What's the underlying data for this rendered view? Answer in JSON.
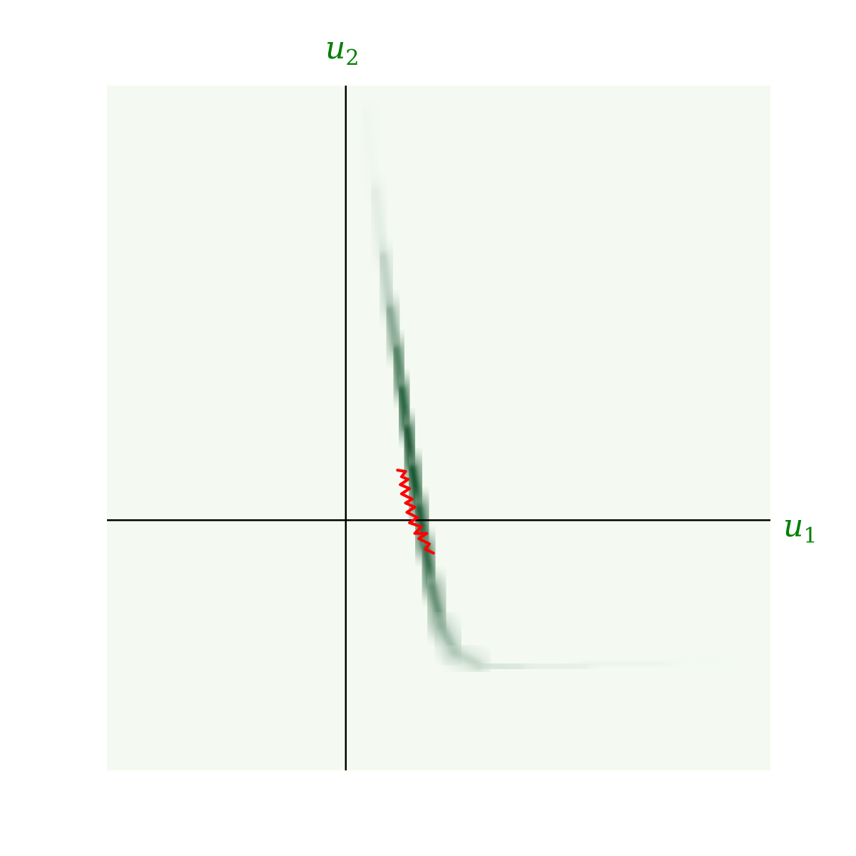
{
  "chart_data": {
    "type": "heatmap",
    "title": "",
    "xlabel": {
      "base": "u",
      "sub": "1"
    },
    "ylabel": {
      "base": "u",
      "sub": "2"
    },
    "xlim": [
      -1.8,
      3.2
    ],
    "ylim": [
      -1.9,
      3.3
    ],
    "grid": false,
    "legend": "none",
    "colormap": "Greens",
    "colors": {
      "background": "#f4faf1",
      "density_low": "#f7fcf5",
      "density_high": "#00441b",
      "trajectory": "#ff0000",
      "axes": "#000000",
      "label": "#008000"
    },
    "density_ridge": [
      {
        "x": 0.15,
        "y": 3.1,
        "intensity": 0.03
      },
      {
        "x": 0.22,
        "y": 2.5,
        "intensity": 0.1
      },
      {
        "x": 0.28,
        "y": 2.0,
        "intensity": 0.22
      },
      {
        "x": 0.33,
        "y": 1.6,
        "intensity": 0.45
      },
      {
        "x": 0.38,
        "y": 1.3,
        "intensity": 0.65
      },
      {
        "x": 0.42,
        "y": 1.0,
        "intensity": 0.82
      },
      {
        "x": 0.46,
        "y": 0.7,
        "intensity": 0.93
      },
      {
        "x": 0.5,
        "y": 0.4,
        "intensity": 1.0
      },
      {
        "x": 0.55,
        "y": 0.1,
        "intensity": 0.97
      },
      {
        "x": 0.6,
        "y": -0.2,
        "intensity": 0.9
      },
      {
        "x": 0.65,
        "y": -0.5,
        "intensity": 0.78
      },
      {
        "x": 0.72,
        "y": -0.8,
        "intensity": 0.55
      },
      {
        "x": 0.82,
        "y": -1.0,
        "intensity": 0.38
      },
      {
        "x": 1.0,
        "y": -1.1,
        "intensity": 0.28
      },
      {
        "x": 1.3,
        "y": -1.12,
        "intensity": 0.18
      },
      {
        "x": 1.8,
        "y": -1.1,
        "intensity": 0.1
      },
      {
        "x": 2.4,
        "y": -1.08,
        "intensity": 0.05
      },
      {
        "x": 2.9,
        "y": -1.05,
        "intensity": 0.02
      }
    ],
    "trajectory": [
      {
        "x": 0.39,
        "y": 0.38
      },
      {
        "x": 0.45,
        "y": 0.37
      },
      {
        "x": 0.42,
        "y": 0.33
      },
      {
        "x": 0.47,
        "y": 0.31
      },
      {
        "x": 0.41,
        "y": 0.27
      },
      {
        "x": 0.48,
        "y": 0.24
      },
      {
        "x": 0.42,
        "y": 0.2
      },
      {
        "x": 0.5,
        "y": 0.16
      },
      {
        "x": 0.45,
        "y": 0.13
      },
      {
        "x": 0.52,
        "y": 0.1
      },
      {
        "x": 0.46,
        "y": 0.06
      },
      {
        "x": 0.54,
        "y": 0.02
      },
      {
        "x": 0.48,
        "y": -0.02
      },
      {
        "x": 0.57,
        "y": -0.05
      },
      {
        "x": 0.52,
        "y": -0.1
      },
      {
        "x": 0.61,
        "y": -0.1
      },
      {
        "x": 0.55,
        "y": -0.14
      },
      {
        "x": 0.63,
        "y": -0.18
      },
      {
        "x": 0.6,
        "y": -0.22
      },
      {
        "x": 0.66,
        "y": -0.25
      }
    ]
  }
}
